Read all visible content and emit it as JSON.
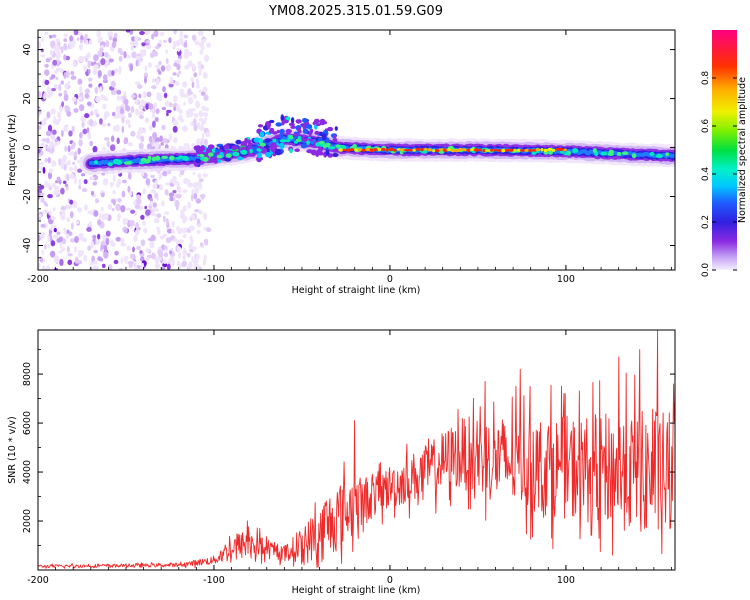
{
  "title": "YM08.2025.315.01.59.G09",
  "chart_data": [
    {
      "type": "heatmap",
      "name": "spectrogram",
      "xlabel": "Height of straight line (km)",
      "ylabel": "Frequency (Hz)",
      "xlim": [
        -200,
        162
      ],
      "ylim": [
        -50,
        48
      ],
      "xticks": [
        -200,
        -100,
        0,
        100
      ],
      "yticks": [
        -40,
        -20,
        0,
        20,
        40
      ],
      "colorbar": {
        "label": "Normalized spectral amplitude",
        "range": [
          0,
          1
        ],
        "ticks": [
          0.0,
          0.2,
          0.4,
          0.6,
          0.8
        ],
        "tick_labels": [
          "0.0",
          "0.2",
          "0.4",
          "0.6",
          "0.8"
        ]
      },
      "noise_region": {
        "x": [
          -200,
          -105
        ],
        "y": [
          -50,
          48
        ]
      },
      "ridge": [
        {
          "x": -170,
          "f": -6.5
        },
        {
          "x": -150,
          "f": -5.5
        },
        {
          "x": -130,
          "f": -5
        },
        {
          "x": -110,
          "f": -4.5
        },
        {
          "x": -100,
          "f": -3.5
        },
        {
          "x": -90,
          "f": -2.5
        },
        {
          "x": -80,
          "f": -1.5
        },
        {
          "x": -70,
          "f": 1
        },
        {
          "x": -60,
          "f": 3.5
        },
        {
          "x": -50,
          "f": 3
        },
        {
          "x": -40,
          "f": 2
        },
        {
          "x": -30,
          "f": 0
        },
        {
          "x": 0,
          "f": -1
        },
        {
          "x": 50,
          "f": -1
        },
        {
          "x": 100,
          "f": -1.5
        },
        {
          "x": 130,
          "f": -2.5
        },
        {
          "x": 162,
          "f": -3.5
        }
      ],
      "high_amplitude_segment": {
        "x": [
          -28,
          100
        ],
        "f": -1
      }
    },
    {
      "type": "line",
      "name": "snr",
      "xlabel": "Height of straight line (km)",
      "ylabel": "SNR (10 * v/v)",
      "xlim": [
        -200,
        162
      ],
      "ylim": [
        0,
        9800
      ],
      "xticks": [
        -200,
        -100,
        0,
        100
      ],
      "yticks": [
        2000,
        4000,
        6000,
        8000
      ],
      "color": "#ee2a2a",
      "envelope": [
        {
          "x": -200,
          "base": 150,
          "amp": 100
        },
        {
          "x": -120,
          "base": 200,
          "amp": 120
        },
        {
          "x": -100,
          "base": 400,
          "amp": 300
        },
        {
          "x": -90,
          "base": 900,
          "amp": 900
        },
        {
          "x": -80,
          "base": 1100,
          "amp": 1000
        },
        {
          "x": -70,
          "base": 800,
          "amp": 600
        },
        {
          "x": -60,
          "base": 700,
          "amp": 500
        },
        {
          "x": -50,
          "base": 1000,
          "amp": 1200
        },
        {
          "x": -40,
          "base": 1500,
          "amp": 2000
        },
        {
          "x": -30,
          "base": 2200,
          "amp": 2400
        },
        {
          "x": -20,
          "base": 2600,
          "amp": 2000
        },
        {
          "x": -10,
          "base": 3000,
          "amp": 1500
        },
        {
          "x": 0,
          "base": 3400,
          "amp": 1500
        },
        {
          "x": 20,
          "base": 4000,
          "amp": 1800
        },
        {
          "x": 40,
          "base": 4800,
          "amp": 2400
        },
        {
          "x": 60,
          "base": 4500,
          "amp": 3000
        },
        {
          "x": 80,
          "base": 4300,
          "amp": 3300
        },
        {
          "x": 100,
          "base": 4200,
          "amp": 3500
        },
        {
          "x": 120,
          "base": 4100,
          "amp": 3800
        },
        {
          "x": 140,
          "base": 4000,
          "amp": 4200
        },
        {
          "x": 162,
          "base": 3800,
          "amp": 4500
        }
      ],
      "peaks": [
        {
          "x": -81,
          "y": 2000
        },
        {
          "x": -74,
          "y": 1700
        },
        {
          "x": -20,
          "y": 6100
        },
        {
          "x": 54,
          "y": 7700
        },
        {
          "x": 74,
          "y": 8200
        },
        {
          "x": 130,
          "y": 8700
        },
        {
          "x": 142,
          "y": 9000
        },
        {
          "x": 152,
          "y": 9800
        }
      ]
    }
  ]
}
